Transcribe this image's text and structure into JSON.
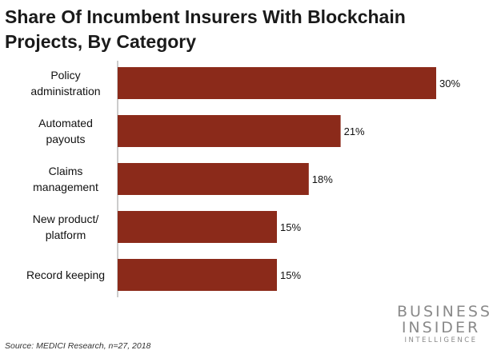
{
  "chart_data": {
    "type": "bar",
    "orientation": "horizontal",
    "title": "Share Of Incumbent Insurers With Blockchain Projects, By Category",
    "categories": [
      [
        "Policy",
        "administration"
      ],
      [
        "Automated",
        "payouts"
      ],
      [
        "Claims",
        "management"
      ],
      [
        "New product/",
        "platform"
      ],
      [
        "Record keeping"
      ]
    ],
    "values": [
      30,
      21,
      18,
      15,
      15
    ],
    "data_labels": [
      "30%",
      "21%",
      "18%",
      "15%",
      "15%"
    ],
    "xlim": [
      0,
      30
    ],
    "grid": false,
    "bar_color": "#8b2a1a"
  },
  "footer": {
    "source": "Source: MEDICI Research, n=27, 2018"
  },
  "logo": {
    "line1": "BUSINESS",
    "line2": "INSIDER",
    "line3": "INTELLIGENCE"
  }
}
